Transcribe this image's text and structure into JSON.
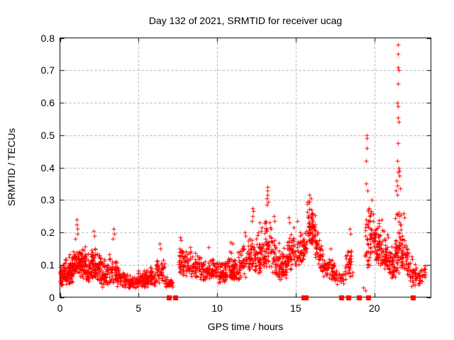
{
  "chart_data": {
    "type": "scatter",
    "title": "Day 132 of 2021, SRMTID for receiver ucag",
    "xlabel": "GPS time / hours",
    "ylabel": "SRMTID / TECUs",
    "xlim": [
      0,
      23.6
    ],
    "ylim": [
      0,
      0.8
    ],
    "xticks": {
      "values": [
        0,
        5,
        10,
        15,
        20
      ],
      "labels": [
        "0",
        "5",
        "10",
        "15",
        "20"
      ]
    },
    "yticks": {
      "values": [
        0,
        0.1,
        0.2,
        0.3,
        0.4,
        0.5,
        0.6,
        0.7,
        0.8
      ],
      "labels": [
        "0",
        "0.1",
        "0.2",
        "0.3",
        "0.4",
        "0.5",
        "0.6",
        "0.7",
        "0.8"
      ]
    },
    "grid": {
      "show": true,
      "style": "dashed",
      "color": "#a9a9a9"
    },
    "colors": {
      "marker": "#ff0000",
      "axis": "#000000",
      "background": "#ffffff"
    },
    "marker_size": 7,
    "series": [
      {
        "name": "srmtid-plus-markers",
        "marker": "plus",
        "color": "#ff0000",
        "cluster_format": [
          "x_start",
          "x_end",
          "y_min_start",
          "y_max_start",
          "y_min_end",
          "y_max_end",
          "n_points"
        ],
        "clusters": [
          [
            0.0,
            0.5,
            0.03,
            0.11,
            0.04,
            0.13,
            75
          ],
          [
            0.5,
            1.05,
            0.04,
            0.13,
            0.05,
            0.17,
            85
          ],
          [
            1.05,
            1.6,
            0.06,
            0.17,
            0.06,
            0.16,
            85
          ],
          [
            1.6,
            2.1,
            0.04,
            0.15,
            0.05,
            0.16,
            70
          ],
          [
            2.1,
            2.6,
            0.05,
            0.16,
            0.04,
            0.14,
            60
          ],
          [
            2.6,
            3.1,
            0.03,
            0.13,
            0.04,
            0.12,
            55
          ],
          [
            3.1,
            3.6,
            0.04,
            0.15,
            0.04,
            0.14,
            50
          ],
          [
            3.6,
            4.25,
            0.03,
            0.12,
            0.025,
            0.09,
            55
          ],
          [
            4.25,
            5.4,
            0.025,
            0.08,
            0.03,
            0.09,
            95
          ],
          [
            5.4,
            6.1,
            0.03,
            0.09,
            0.035,
            0.1,
            65
          ],
          [
            6.1,
            6.65,
            0.04,
            0.14,
            0.04,
            0.12,
            45
          ],
          [
            6.65,
            7.2,
            0.03,
            0.08,
            0.03,
            0.06,
            30
          ],
          [
            7.55,
            8.4,
            0.06,
            0.18,
            0.06,
            0.16,
            75
          ],
          [
            8.4,
            9.3,
            0.06,
            0.14,
            0.05,
            0.13,
            75
          ],
          [
            9.3,
            10.0,
            0.05,
            0.13,
            0.05,
            0.12,
            65
          ],
          [
            10.0,
            10.6,
            0.04,
            0.12,
            0.05,
            0.13,
            60
          ],
          [
            10.6,
            11.2,
            0.05,
            0.15,
            0.05,
            0.14,
            60
          ],
          [
            11.2,
            11.9,
            0.05,
            0.16,
            0.06,
            0.18,
            60
          ],
          [
            11.9,
            12.5,
            0.06,
            0.2,
            0.07,
            0.19,
            55
          ],
          [
            12.5,
            13.0,
            0.07,
            0.21,
            0.08,
            0.22,
            55
          ],
          [
            13.0,
            13.45,
            0.08,
            0.27,
            0.08,
            0.24,
            50
          ],
          [
            13.45,
            14.0,
            0.06,
            0.22,
            0.05,
            0.17,
            50
          ],
          [
            14.0,
            14.45,
            0.05,
            0.15,
            0.06,
            0.16,
            45
          ],
          [
            14.45,
            14.85,
            0.08,
            0.22,
            0.09,
            0.21,
            45
          ],
          [
            14.85,
            15.45,
            0.09,
            0.22,
            0.1,
            0.2,
            50
          ],
          [
            15.45,
            15.72,
            0.1,
            0.2,
            0.15,
            0.26,
            25
          ],
          [
            15.72,
            16.2,
            0.17,
            0.31,
            0.15,
            0.27,
            65
          ],
          [
            16.2,
            16.68,
            0.12,
            0.26,
            0.07,
            0.16,
            50
          ],
          [
            16.68,
            17.5,
            0.06,
            0.14,
            0.05,
            0.12,
            60
          ],
          [
            17.5,
            18.05,
            0.04,
            0.1,
            0.04,
            0.08,
            25
          ],
          [
            18.1,
            18.6,
            0.05,
            0.19,
            0.06,
            0.17,
            40
          ],
          [
            19.38,
            19.75,
            0.06,
            0.3,
            0.1,
            0.33,
            42
          ],
          [
            19.75,
            20.35,
            0.12,
            0.31,
            0.1,
            0.27,
            70
          ],
          [
            20.35,
            20.95,
            0.09,
            0.26,
            0.07,
            0.2,
            60
          ],
          [
            20.95,
            21.3,
            0.05,
            0.18,
            0.06,
            0.16,
            40
          ],
          [
            21.3,
            21.7,
            0.06,
            0.3,
            0.07,
            0.28,
            55
          ],
          [
            21.7,
            22.2,
            0.08,
            0.25,
            0.05,
            0.18,
            50
          ],
          [
            22.2,
            22.7,
            0.03,
            0.14,
            0.03,
            0.1,
            40
          ],
          [
            22.7,
            23.25,
            0.03,
            0.12,
            0.04,
            0.1,
            28
          ]
        ],
        "peak_points": [
          [
            1.05,
            0.24
          ],
          [
            1.07,
            0.225
          ],
          [
            1.1,
            0.21
          ],
          [
            1.09,
            0.195
          ],
          [
            0.95,
            0.18
          ],
          [
            2.15,
            0.205
          ],
          [
            2.2,
            0.19
          ],
          [
            3.4,
            0.21
          ],
          [
            3.43,
            0.195
          ],
          [
            3.37,
            0.18
          ],
          [
            6.35,
            0.165
          ],
          [
            6.4,
            0.15
          ],
          [
            7.67,
            0.185
          ],
          [
            7.7,
            0.175
          ],
          [
            9.45,
            0.155
          ],
          [
            10.85,
            0.17
          ],
          [
            11.0,
            0.165
          ],
          [
            11.75,
            0.2
          ],
          [
            11.8,
            0.19
          ],
          [
            12.25,
            0.275
          ],
          [
            12.3,
            0.265
          ],
          [
            12.27,
            0.25
          ],
          [
            12.2,
            0.235
          ],
          [
            12.7,
            0.23
          ],
          [
            12.85,
            0.215
          ],
          [
            13.18,
            0.34
          ],
          [
            13.2,
            0.33
          ],
          [
            13.22,
            0.315
          ],
          [
            13.17,
            0.305
          ],
          [
            13.24,
            0.295
          ],
          [
            13.15,
            0.285
          ],
          [
            13.6,
            0.25
          ],
          [
            13.65,
            0.235
          ],
          [
            14.55,
            0.245
          ],
          [
            14.6,
            0.23
          ],
          [
            15.1,
            0.235
          ],
          [
            15.85,
            0.315
          ],
          [
            15.95,
            0.305
          ],
          [
            15.8,
            0.295
          ],
          [
            17.2,
            0.15
          ],
          [
            18.45,
            0.21
          ],
          [
            18.48,
            0.195
          ],
          [
            19.3,
            0.03
          ],
          [
            19.42,
            0.02
          ],
          [
            19.5,
            0.5
          ],
          [
            19.51,
            0.49
          ],
          [
            19.53,
            0.46
          ],
          [
            19.49,
            0.42
          ],
          [
            19.46,
            0.35
          ],
          [
            19.56,
            0.33
          ],
          [
            19.85,
            0.3
          ],
          [
            21.5,
            0.78
          ],
          [
            21.52,
            0.75
          ],
          [
            21.48,
            0.71
          ],
          [
            21.53,
            0.7
          ],
          [
            21.5,
            0.66
          ],
          [
            21.47,
            0.6
          ],
          [
            21.52,
            0.59
          ],
          [
            21.49,
            0.555
          ],
          [
            21.55,
            0.54
          ],
          [
            21.5,
            0.475
          ],
          [
            21.45,
            0.42
          ],
          [
            21.55,
            0.4
          ],
          [
            21.6,
            0.39
          ],
          [
            21.5,
            0.385
          ],
          [
            21.57,
            0.375
          ],
          [
            21.42,
            0.36
          ],
          [
            21.46,
            0.345
          ],
          [
            21.62,
            0.335
          ],
          [
            21.38,
            0.33
          ],
          [
            21.44,
            0.315
          ],
          [
            21.85,
            0.26
          ],
          [
            21.9,
            0.245
          ],
          [
            22.1,
            0.15
          ]
        ]
      },
      {
        "name": "zero-flag-squares",
        "marker": "filled-square",
        "color": "#ff0000",
        "y": 0,
        "x_values": [
          6.92,
          7.33,
          15.5,
          15.63,
          17.9,
          18.33,
          19.03,
          19.6,
          22.47
        ]
      }
    ]
  }
}
